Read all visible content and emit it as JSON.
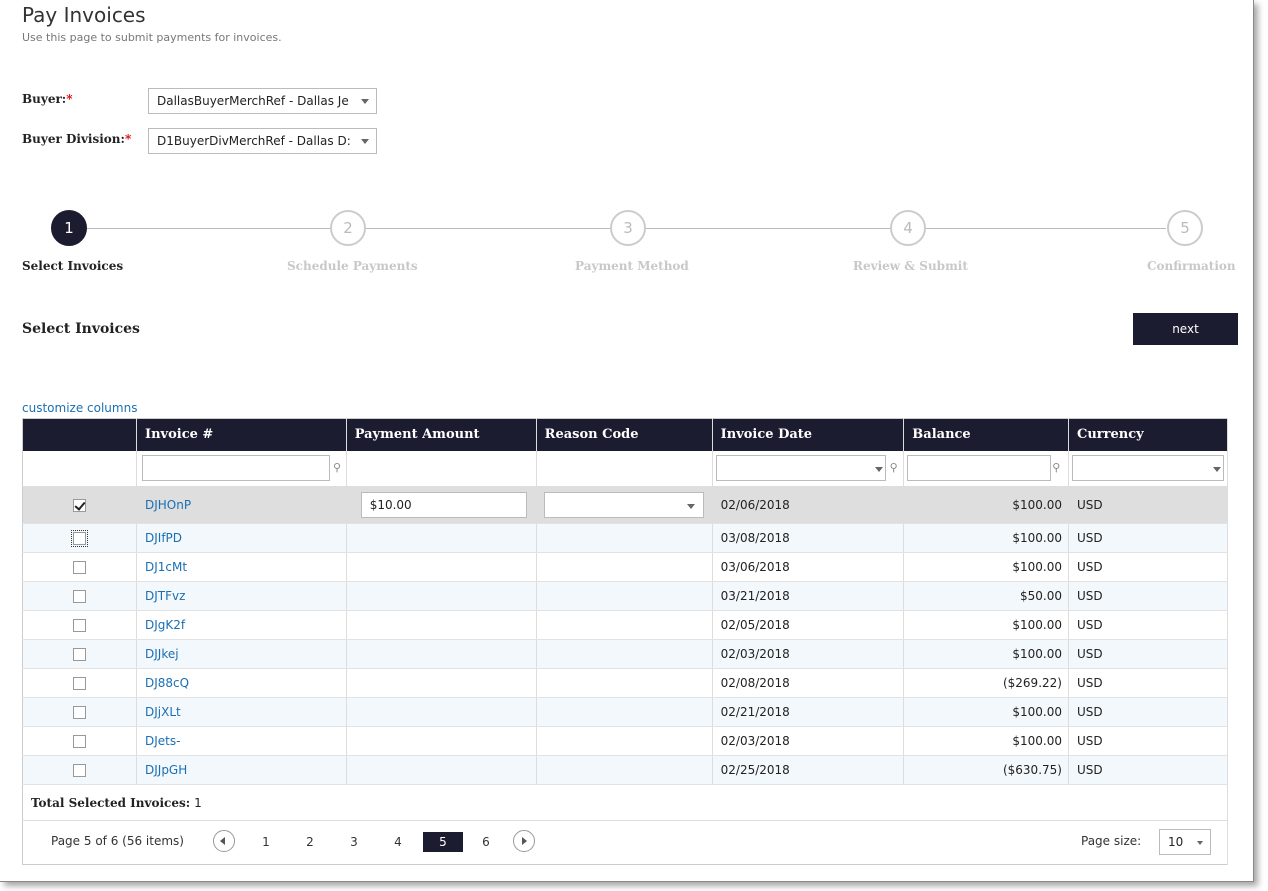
{
  "page": {
    "title": "Pay Invoices",
    "subtitle": "Use this page to submit payments for invoices."
  },
  "form": {
    "buyer_label": "Buyer:",
    "buyer_value": "DallasBuyerMerchRef - Dallas Je",
    "division_label": "Buyer Division:",
    "division_value": "D1BuyerDivMerchRef - Dallas D:",
    "required_mark": "*"
  },
  "steps": [
    {
      "num": "1",
      "label": "Select Invoices",
      "active": true
    },
    {
      "num": "2",
      "label": "Schedule Payments",
      "active": false
    },
    {
      "num": "3",
      "label": "Payment Method",
      "active": false
    },
    {
      "num": "4",
      "label": "Review & Submit",
      "active": false
    },
    {
      "num": "5",
      "label": "Confirmation",
      "active": false
    }
  ],
  "section": {
    "title": "Select Invoices",
    "next_label": "next",
    "customize_label": "customize columns"
  },
  "grid": {
    "columns": [
      "",
      "Invoice #",
      "Payment Amount",
      "Reason Code",
      "Invoice Date",
      "Balance",
      "Currency"
    ],
    "rows": [
      {
        "checked": true,
        "invoice": "DJHOnP",
        "payment": "$10.00",
        "date": "02/06/2018",
        "balance": "$100.00",
        "currency": "USD"
      },
      {
        "checked": false,
        "invoice": "DJIfPD",
        "payment": "",
        "date": "03/08/2018",
        "balance": "$100.00",
        "currency": "USD"
      },
      {
        "checked": false,
        "invoice": "DJ1cMt",
        "payment": "",
        "date": "03/06/2018",
        "balance": "$100.00",
        "currency": "USD"
      },
      {
        "checked": false,
        "invoice": "DJTFvz",
        "payment": "",
        "date": "03/21/2018",
        "balance": "$50.00",
        "currency": "USD"
      },
      {
        "checked": false,
        "invoice": "DJgK2f",
        "payment": "",
        "date": "02/05/2018",
        "balance": "$100.00",
        "currency": "USD"
      },
      {
        "checked": false,
        "invoice": "DJJkej",
        "payment": "",
        "date": "02/03/2018",
        "balance": "$100.00",
        "currency": "USD"
      },
      {
        "checked": false,
        "invoice": "DJ88cQ",
        "payment": "",
        "date": "02/08/2018",
        "balance": "($269.22)",
        "currency": "USD"
      },
      {
        "checked": false,
        "invoice": "DJjXLt",
        "payment": "",
        "date": "02/21/2018",
        "balance": "$100.00",
        "currency": "USD"
      },
      {
        "checked": false,
        "invoice": "DJets-",
        "payment": "",
        "date": "02/03/2018",
        "balance": "$100.00",
        "currency": "USD"
      },
      {
        "checked": false,
        "invoice": "DJJpGH",
        "payment": "",
        "date": "02/25/2018",
        "balance": "($630.75)",
        "currency": "USD"
      }
    ],
    "total_label": "Total Selected Invoices:",
    "total_value": "1"
  },
  "pager": {
    "info": "Page 5 of 6 (56 items)",
    "pages": [
      "1",
      "2",
      "3",
      "4",
      "5",
      "6"
    ],
    "current": "5",
    "page_size_label": "Page size:",
    "page_size_value": "10"
  },
  "colors": {
    "header_bg": "#1c1c30",
    "link": "#1a6fb3",
    "required": "#dd0000"
  }
}
